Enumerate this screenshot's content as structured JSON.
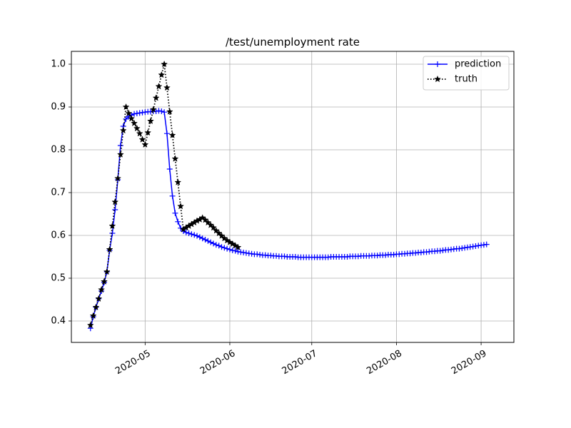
{
  "chart_data": {
    "type": "line",
    "title": "/test/unemployment rate",
    "xlabel": "",
    "ylabel": "",
    "x_axis_type": "date",
    "xlim": [
      "2020-04-04",
      "2020-09-13"
    ],
    "ylim": [
      0.35,
      1.03
    ],
    "x_ticks": [
      {
        "date": "2020-05-01",
        "label": "2020-05"
      },
      {
        "date": "2020-06-01",
        "label": "2020-06"
      },
      {
        "date": "2020-07-01",
        "label": "2020-07"
      },
      {
        "date": "2020-08-01",
        "label": "2020-08"
      },
      {
        "date": "2020-09-01",
        "label": "2020-09"
      }
    ],
    "y_ticks": [
      {
        "value": 0.4,
        "label": "0.4"
      },
      {
        "value": 0.5,
        "label": "0.5"
      },
      {
        "value": 0.6,
        "label": "0.6"
      },
      {
        "value": 0.7,
        "label": "0.7"
      },
      {
        "value": 0.8,
        "label": "0.8"
      },
      {
        "value": 0.9,
        "label": "0.9"
      },
      {
        "value": 1.0,
        "label": "1.0"
      }
    ],
    "grid": true,
    "legend": {
      "placement": "top-right"
    },
    "series": [
      {
        "name": "prediction",
        "color": "#0000ff",
        "linestyle": "solid",
        "marker": "plus",
        "points": [
          [
            "2020-04-11",
            0.383
          ],
          [
            "2020-04-12",
            0.41
          ],
          [
            "2020-04-13",
            0.432
          ],
          [
            "2020-04-14",
            0.452
          ],
          [
            "2020-04-15",
            0.47
          ],
          [
            "2020-04-16",
            0.49
          ],
          [
            "2020-04-17",
            0.515
          ],
          [
            "2020-04-18",
            0.565
          ],
          [
            "2020-04-19",
            0.605
          ],
          [
            "2020-04-20",
            0.66
          ],
          [
            "2020-04-21",
            0.73
          ],
          [
            "2020-04-22",
            0.81
          ],
          [
            "2020-04-23",
            0.855
          ],
          [
            "2020-04-24",
            0.872
          ],
          [
            "2020-04-25",
            0.878
          ],
          [
            "2020-04-26",
            0.881
          ],
          [
            "2020-04-27",
            0.884
          ],
          [
            "2020-04-28",
            0.885
          ],
          [
            "2020-04-29",
            0.886
          ],
          [
            "2020-04-30",
            0.887
          ],
          [
            "2020-05-01",
            0.888
          ],
          [
            "2020-05-02",
            0.889
          ],
          [
            "2020-05-03",
            0.889
          ],
          [
            "2020-05-04",
            0.89
          ],
          [
            "2020-05-05",
            0.89
          ],
          [
            "2020-05-06",
            0.891
          ],
          [
            "2020-05-07",
            0.89
          ],
          [
            "2020-05-08",
            0.888
          ],
          [
            "2020-05-09",
            0.838
          ],
          [
            "2020-05-10",
            0.755
          ],
          [
            "2020-05-11",
            0.692
          ],
          [
            "2020-05-12",
            0.652
          ],
          [
            "2020-05-13",
            0.632
          ],
          [
            "2020-05-14",
            0.617
          ],
          [
            "2020-05-15",
            0.61
          ],
          [
            "2020-05-16",
            0.607
          ],
          [
            "2020-05-17",
            0.605
          ],
          [
            "2020-05-18",
            0.603
          ],
          [
            "2020-05-19",
            0.601
          ],
          [
            "2020-05-20",
            0.599
          ],
          [
            "2020-05-21",
            0.596
          ],
          [
            "2020-05-22",
            0.593
          ],
          [
            "2020-05-23",
            0.59
          ],
          [
            "2020-05-24",
            0.587
          ],
          [
            "2020-05-25",
            0.584
          ],
          [
            "2020-05-26",
            0.581
          ],
          [
            "2020-05-27",
            0.578
          ],
          [
            "2020-05-28",
            0.576
          ],
          [
            "2020-05-29",
            0.573
          ],
          [
            "2020-05-30",
            0.571
          ],
          [
            "2020-05-31",
            0.569
          ],
          [
            "2020-06-01",
            0.567
          ],
          [
            "2020-06-02",
            0.565
          ],
          [
            "2020-06-03",
            0.564
          ],
          [
            "2020-06-04",
            0.562
          ],
          [
            "2020-06-05",
            0.561
          ],
          [
            "2020-06-06",
            0.56
          ],
          [
            "2020-06-07",
            0.559
          ],
          [
            "2020-06-08",
            0.558
          ],
          [
            "2020-06-09",
            0.557
          ],
          [
            "2020-06-10",
            0.556
          ],
          [
            "2020-06-11",
            0.556
          ],
          [
            "2020-06-12",
            0.555
          ],
          [
            "2020-06-13",
            0.554
          ],
          [
            "2020-06-14",
            0.554
          ],
          [
            "2020-06-15",
            0.553
          ],
          [
            "2020-06-16",
            0.553
          ],
          [
            "2020-06-17",
            0.552
          ],
          [
            "2020-06-18",
            0.552
          ],
          [
            "2020-06-19",
            0.551
          ],
          [
            "2020-06-20",
            0.551
          ],
          [
            "2020-06-21",
            0.551
          ],
          [
            "2020-06-22",
            0.55
          ],
          [
            "2020-06-23",
            0.55
          ],
          [
            "2020-06-24",
            0.55
          ],
          [
            "2020-06-25",
            0.55
          ],
          [
            "2020-06-26",
            0.549
          ],
          [
            "2020-06-27",
            0.549
          ],
          [
            "2020-06-28",
            0.549
          ],
          [
            "2020-06-29",
            0.549
          ],
          [
            "2020-06-30",
            0.549
          ],
          [
            "2020-07-01",
            0.549
          ],
          [
            "2020-07-02",
            0.549
          ],
          [
            "2020-07-03",
            0.549
          ],
          [
            "2020-07-04",
            0.549
          ],
          [
            "2020-07-05",
            0.549
          ],
          [
            "2020-07-06",
            0.549
          ],
          [
            "2020-07-07",
            0.549
          ],
          [
            "2020-07-08",
            0.55
          ],
          [
            "2020-07-09",
            0.55
          ],
          [
            "2020-07-10",
            0.55
          ],
          [
            "2020-07-11",
            0.55
          ],
          [
            "2020-07-12",
            0.55
          ],
          [
            "2020-07-13",
            0.55
          ],
          [
            "2020-07-14",
            0.55
          ],
          [
            "2020-07-15",
            0.551
          ],
          [
            "2020-07-16",
            0.551
          ],
          [
            "2020-07-17",
            0.551
          ],
          [
            "2020-07-18",
            0.551
          ],
          [
            "2020-07-19",
            0.552
          ],
          [
            "2020-07-20",
            0.552
          ],
          [
            "2020-07-21",
            0.552
          ],
          [
            "2020-07-22",
            0.552
          ],
          [
            "2020-07-23",
            0.553
          ],
          [
            "2020-07-24",
            0.553
          ],
          [
            "2020-07-25",
            0.553
          ],
          [
            "2020-07-26",
            0.554
          ],
          [
            "2020-07-27",
            0.554
          ],
          [
            "2020-07-28",
            0.554
          ],
          [
            "2020-07-29",
            0.555
          ],
          [
            "2020-07-30",
            0.555
          ],
          [
            "2020-07-31",
            0.555
          ],
          [
            "2020-08-01",
            0.556
          ],
          [
            "2020-08-02",
            0.556
          ],
          [
            "2020-08-03",
            0.557
          ],
          [
            "2020-08-04",
            0.557
          ],
          [
            "2020-08-05",
            0.558
          ],
          [
            "2020-08-06",
            0.558
          ],
          [
            "2020-08-07",
            0.559
          ],
          [
            "2020-08-08",
            0.559
          ],
          [
            "2020-08-09",
            0.56
          ],
          [
            "2020-08-10",
            0.56
          ],
          [
            "2020-08-11",
            0.561
          ],
          [
            "2020-08-12",
            0.561
          ],
          [
            "2020-08-13",
            0.562
          ],
          [
            "2020-08-14",
            0.563
          ],
          [
            "2020-08-15",
            0.563
          ],
          [
            "2020-08-16",
            0.564
          ],
          [
            "2020-08-17",
            0.564
          ],
          [
            "2020-08-18",
            0.565
          ],
          [
            "2020-08-19",
            0.566
          ],
          [
            "2020-08-20",
            0.566
          ],
          [
            "2020-08-21",
            0.567
          ],
          [
            "2020-08-22",
            0.568
          ],
          [
            "2020-08-23",
            0.569
          ],
          [
            "2020-08-24",
            0.569
          ],
          [
            "2020-08-25",
            0.57
          ],
          [
            "2020-08-26",
            0.571
          ],
          [
            "2020-08-27",
            0.572
          ],
          [
            "2020-08-28",
            0.573
          ],
          [
            "2020-08-29",
            0.574
          ],
          [
            "2020-08-30",
            0.575
          ],
          [
            "2020-08-31",
            0.576
          ],
          [
            "2020-09-01",
            0.577
          ],
          [
            "2020-09-02",
            0.578
          ],
          [
            "2020-09-03",
            0.579
          ]
        ]
      },
      {
        "name": "truth",
        "color": "#000000",
        "linestyle": "dotted",
        "marker": "star",
        "points": [
          [
            "2020-04-11",
            0.39
          ],
          [
            "2020-04-12",
            0.412
          ],
          [
            "2020-04-13",
            0.432
          ],
          [
            "2020-04-14",
            0.452
          ],
          [
            "2020-04-15",
            0.473
          ],
          [
            "2020-04-16",
            0.492
          ],
          [
            "2020-04-17",
            0.515
          ],
          [
            "2020-04-18",
            0.567
          ],
          [
            "2020-04-19",
            0.622
          ],
          [
            "2020-04-20",
            0.678
          ],
          [
            "2020-04-21",
            0.733
          ],
          [
            "2020-04-22",
            0.789
          ],
          [
            "2020-04-23",
            0.845
          ],
          [
            "2020-04-24",
            0.9
          ],
          [
            "2020-04-25",
            0.885
          ],
          [
            "2020-04-26",
            0.873
          ],
          [
            "2020-04-27",
            0.862
          ],
          [
            "2020-04-28",
            0.85
          ],
          [
            "2020-04-29",
            0.838
          ],
          [
            "2020-04-30",
            0.824
          ],
          [
            "2020-05-01",
            0.812
          ],
          [
            "2020-05-02",
            0.84
          ],
          [
            "2020-05-03",
            0.867
          ],
          [
            "2020-05-04",
            0.894
          ],
          [
            "2020-05-05",
            0.921
          ],
          [
            "2020-05-06",
            0.948
          ],
          [
            "2020-05-07",
            0.975
          ],
          [
            "2020-05-08",
            1.0
          ],
          [
            "2020-05-09",
            0.945
          ],
          [
            "2020-05-10",
            0.889
          ],
          [
            "2020-05-11",
            0.834
          ],
          [
            "2020-05-12",
            0.779
          ],
          [
            "2020-05-13",
            0.724
          ],
          [
            "2020-05-14",
            0.668
          ],
          [
            "2020-05-15",
            0.614
          ],
          [
            "2020-05-16",
            0.618
          ],
          [
            "2020-05-17",
            0.622
          ],
          [
            "2020-05-18",
            0.626
          ],
          [
            "2020-05-19",
            0.63
          ],
          [
            "2020-05-20",
            0.634
          ],
          [
            "2020-05-21",
            0.637
          ],
          [
            "2020-05-22",
            0.641
          ],
          [
            "2020-05-23",
            0.636
          ],
          [
            "2020-05-24",
            0.63
          ],
          [
            "2020-05-25",
            0.624
          ],
          [
            "2020-05-26",
            0.618
          ],
          [
            "2020-05-27",
            0.611
          ],
          [
            "2020-05-28",
            0.605
          ],
          [
            "2020-05-29",
            0.599
          ],
          [
            "2020-05-30",
            0.593
          ],
          [
            "2020-05-31",
            0.588
          ],
          [
            "2020-06-01",
            0.584
          ],
          [
            "2020-06-02",
            0.58
          ],
          [
            "2020-06-03",
            0.576
          ],
          [
            "2020-06-04",
            0.572
          ]
        ]
      }
    ]
  }
}
